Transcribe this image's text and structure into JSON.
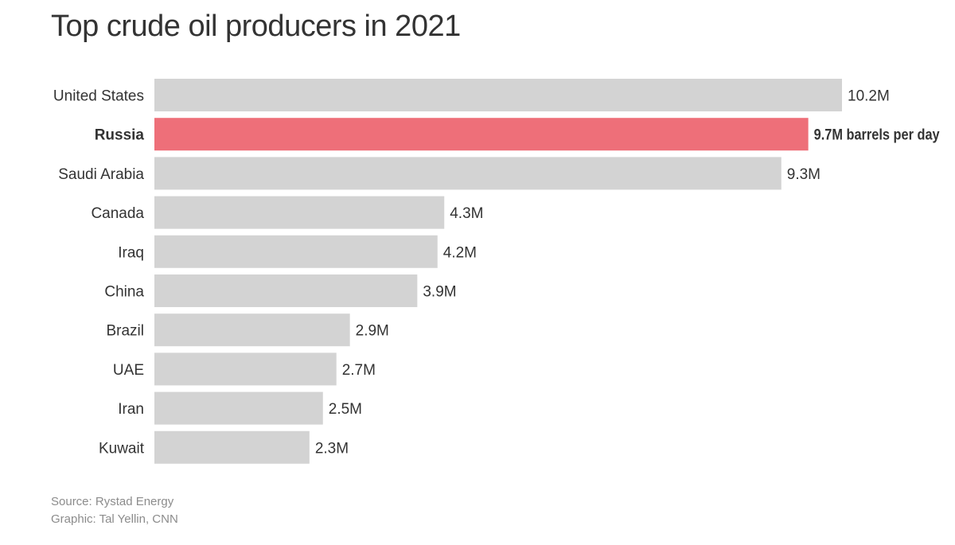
{
  "chart_data": {
    "type": "bar",
    "orientation": "horizontal",
    "title": "Top crude oil producers in 2021",
    "categories": [
      "United States",
      "Russia",
      "Saudi Arabia",
      "Canada",
      "Iraq",
      "China",
      "Brazil",
      "UAE",
      "Iran",
      "Kuwait"
    ],
    "values": [
      10.2,
      9.7,
      9.3,
      4.3,
      4.2,
      3.9,
      2.9,
      2.7,
      2.5,
      2.3
    ],
    "value_labels": [
      "10.2M",
      "9.7M barrels per day",
      "9.3M",
      "4.3M",
      "4.2M",
      "3.9M",
      "2.9M",
      "2.7M",
      "2.5M",
      "2.3M"
    ],
    "highlight": "Russia",
    "xlim": [
      0,
      10.2
    ],
    "grid": false,
    "legend": "none",
    "colors": {
      "bar": "#d3d3d3",
      "highlight": "#ee6f79",
      "category_text": "#333333",
      "value_text": "#333333"
    }
  },
  "footer": {
    "source": "Source: Rystad Energy",
    "credit": "Graphic: Tal Yellin, CNN"
  }
}
